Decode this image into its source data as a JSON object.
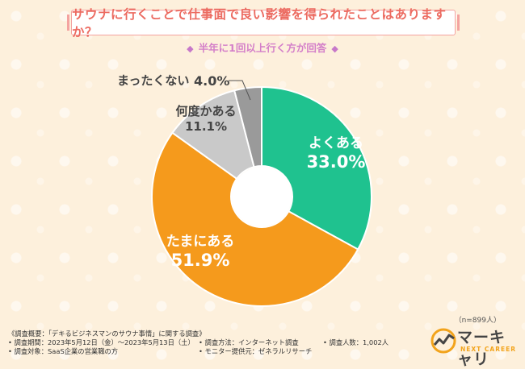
{
  "header": {
    "title": "サウナに行くことで仕事面で良い影響を得られたことはありますか？",
    "subtitle": "半年に1回以上行く方が回答",
    "diamond": "◆"
  },
  "chart_data": {
    "type": "pie",
    "donut": true,
    "categories": [
      "よくある",
      "たまにある",
      "何度かある",
      "まったくない"
    ],
    "values": [
      33.0,
      51.9,
      11.1,
      4.0
    ],
    "value_labels": [
      "33.0%",
      "51.9%",
      "11.1%",
      "4.0%"
    ],
    "colors": [
      "#1fc28f",
      "#f59a1c",
      "#c9c9c9",
      "#9a9a9a"
    ],
    "sample_size": "（n=899人）"
  },
  "footer": {
    "col1": [
      "《調査概要：「デキるビジネスマンのサウナ事情」に関する調査》",
      "• 調査期間：2023年5月12日（金）〜2023年5月13日（土）",
      "• 調査対象：SaaS企業の営業職の方"
    ],
    "col2": [
      "• 調査方法：インターネット調査",
      "• モニター提供元：ゼネラルリサーチ"
    ],
    "col3": [
      "• 調査人数：1,002人"
    ]
  },
  "logo": {
    "main": "マーキャリ",
    "sub": "NEXT CAREER",
    "colors": {
      "orange": "#f2a31b",
      "gray": "#444444"
    }
  }
}
